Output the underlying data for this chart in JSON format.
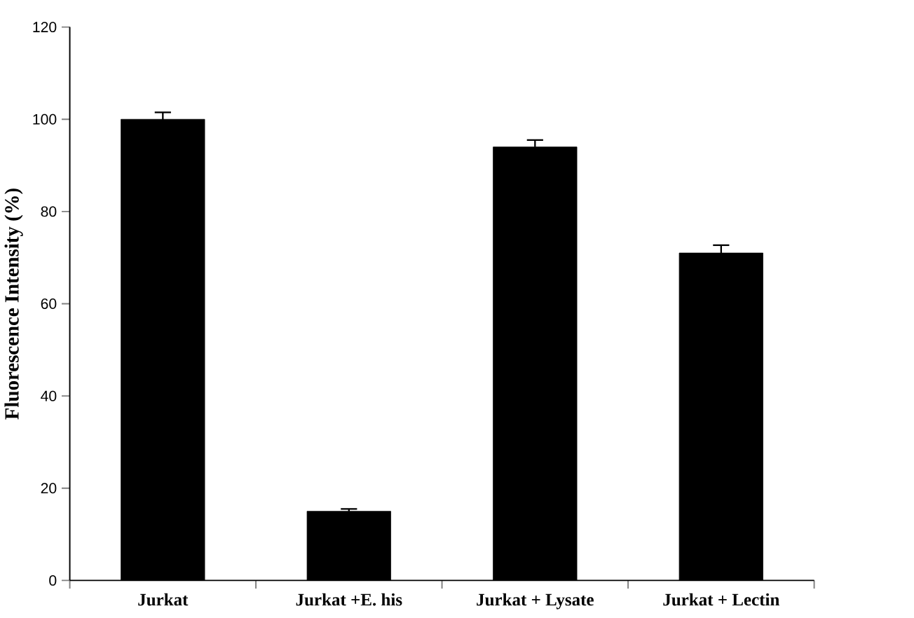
{
  "chart_data": {
    "type": "bar",
    "ylabel": "Fluorescence Intensity (%)",
    "categories": [
      "Jurkat",
      "Jurkat +E. his",
      "Jurkat + Lysate",
      "Jurkat + Lectin"
    ],
    "values": [
      100,
      15,
      94,
      71
    ],
    "errors": [
      1.5,
      0.5,
      1.5,
      1.7
    ],
    "color": "#000000",
    "ylim": [
      0,
      120
    ],
    "yticks": [
      0,
      20,
      40,
      60,
      80,
      100,
      120
    ],
    "grid": false
  }
}
